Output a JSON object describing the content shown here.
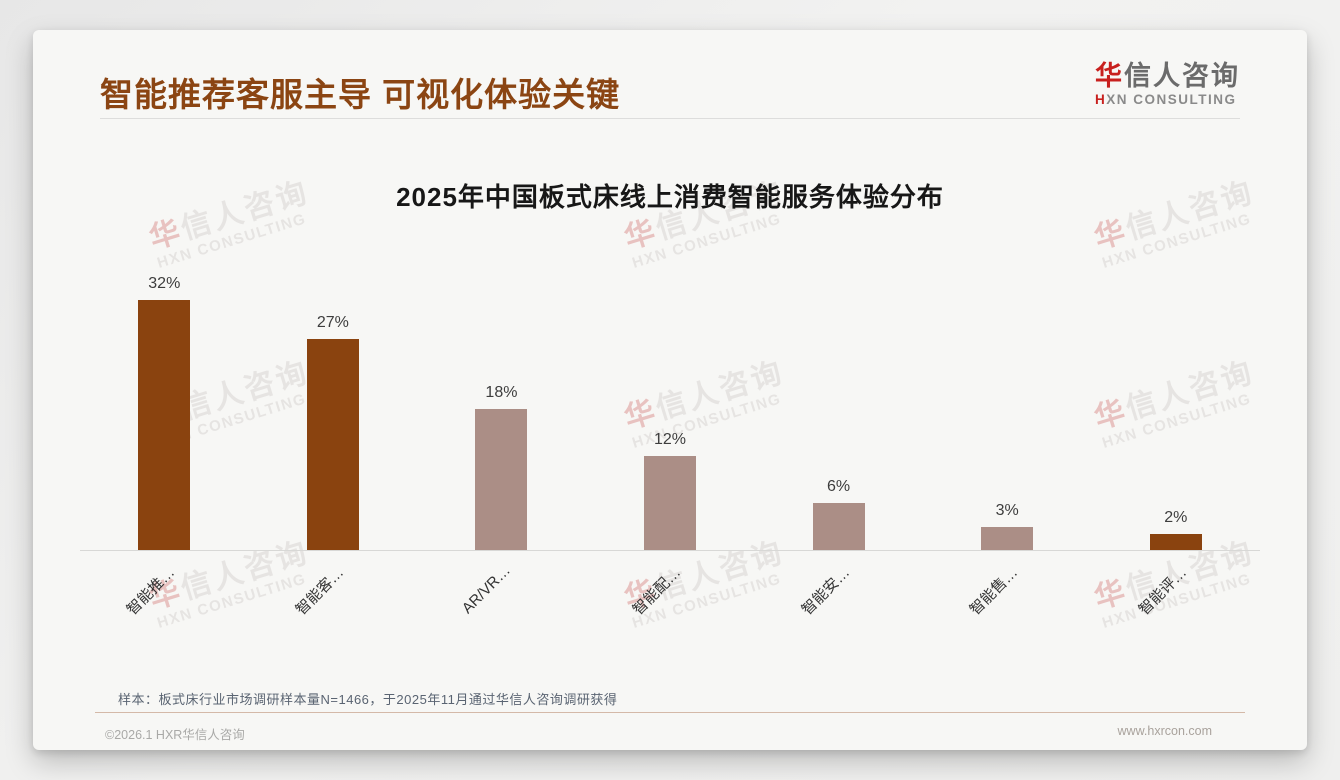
{
  "page": {
    "title": "智能推荐客服主导 可视化体验关键",
    "logo": {
      "zh_accent": "华",
      "zh_rest": "信人咨询",
      "en_accent": "H",
      "en_rest": "XN CONSULTING"
    },
    "watermark": {
      "zh_accent": "华",
      "zh_rest": "信人咨询",
      "en": "HXN CONSULTING"
    },
    "sample_note": "样本：板式床行业市场调研样本量N=1466，于2025年11月通过华信人咨询调研获得",
    "footer_left": "©2026.1 HXR华信人咨询",
    "footer_right": "www.hxrcon.com"
  },
  "colors": {
    "accent_brown": "#8A430F",
    "bar_light": "#AB8E86",
    "logo_red": "#C8201E",
    "title_brown": "#8B4513"
  },
  "chart_data": {
    "type": "bar",
    "title": "2025年中国板式床线上消费智能服务体验分布",
    "categories": [
      "智能推…",
      "智能客…",
      "AR/VR…",
      "智能配…",
      "智能安…",
      "智能售…",
      "智能评…"
    ],
    "values": [
      32,
      27,
      18,
      12,
      6,
      3,
      2
    ],
    "value_labels": [
      "32%",
      "27%",
      "18%",
      "12%",
      "6%",
      "3%",
      "2%"
    ],
    "bar_colors": [
      "#8A430F",
      "#8A430F",
      "#AB8E86",
      "#AB8E86",
      "#AB8E86",
      "#AB8E86",
      "#8A430F"
    ],
    "xlabel": "",
    "ylabel": "",
    "ylim": [
      0,
      32
    ],
    "grid": false,
    "legend": false,
    "data_labels": true,
    "x_label_rotation": -45
  }
}
